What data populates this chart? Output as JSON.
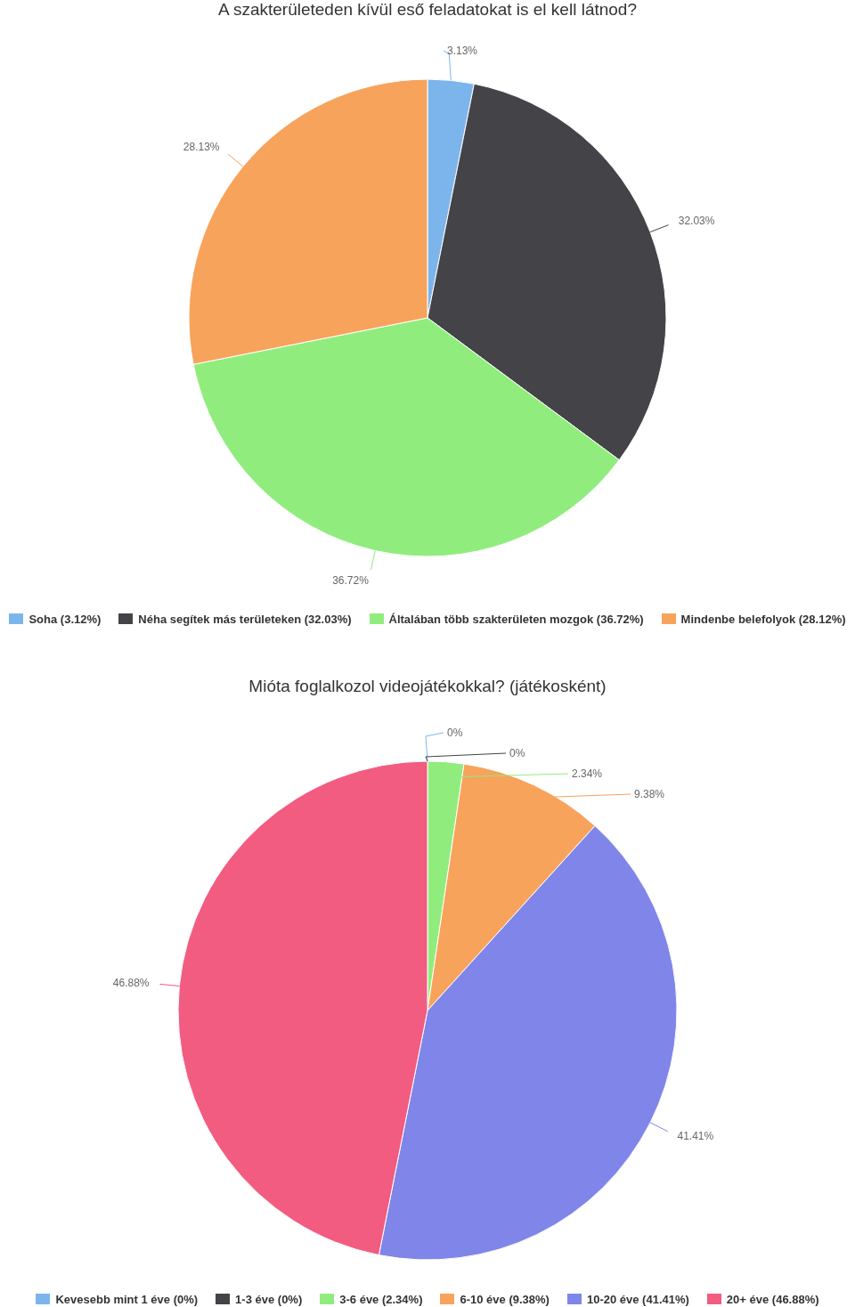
{
  "chart_data": [
    {
      "type": "pie",
      "title": "A szakterületeden kívül eső feladatokat is el kell látnod?",
      "categories": [
        "Soha (3.12%)",
        "Néha segítek más területeken (32.03%)",
        "Általában több szakterületen mozgok (36.72%)",
        "Mindenbe belefolyok (28.12%)"
      ],
      "values": [
        3.13,
        32.03,
        36.72,
        28.13
      ],
      "value_labels": [
        "3.13%",
        "32.03%",
        "36.72%",
        "28.13%"
      ],
      "colors": [
        "#7cb5ec",
        "#434348",
        "#90ed7d",
        "#f7a35c"
      ],
      "legend": "bottom"
    },
    {
      "type": "pie",
      "title": "Mióta foglalkozol videojátékokkal? (játékosként)",
      "categories": [
        "Kevesebb mint 1 éve (0%)",
        "1-3 éve (0%)",
        "3-6 éve (2.34%)",
        "6-10 éve (9.38%)",
        "10-20 éve (41.41%)",
        "20+ éve (46.88%)"
      ],
      "values": [
        0,
        0,
        2.34,
        9.38,
        41.41,
        46.88
      ],
      "value_labels": [
        "0%",
        "0%",
        "2.34%",
        "9.38%",
        "41.41%",
        "46.88%"
      ],
      "colors": [
        "#7cb5ec",
        "#434348",
        "#90ed7d",
        "#f7a35c",
        "#8085e9",
        "#f15c80"
      ],
      "legend": "bottom"
    }
  ]
}
